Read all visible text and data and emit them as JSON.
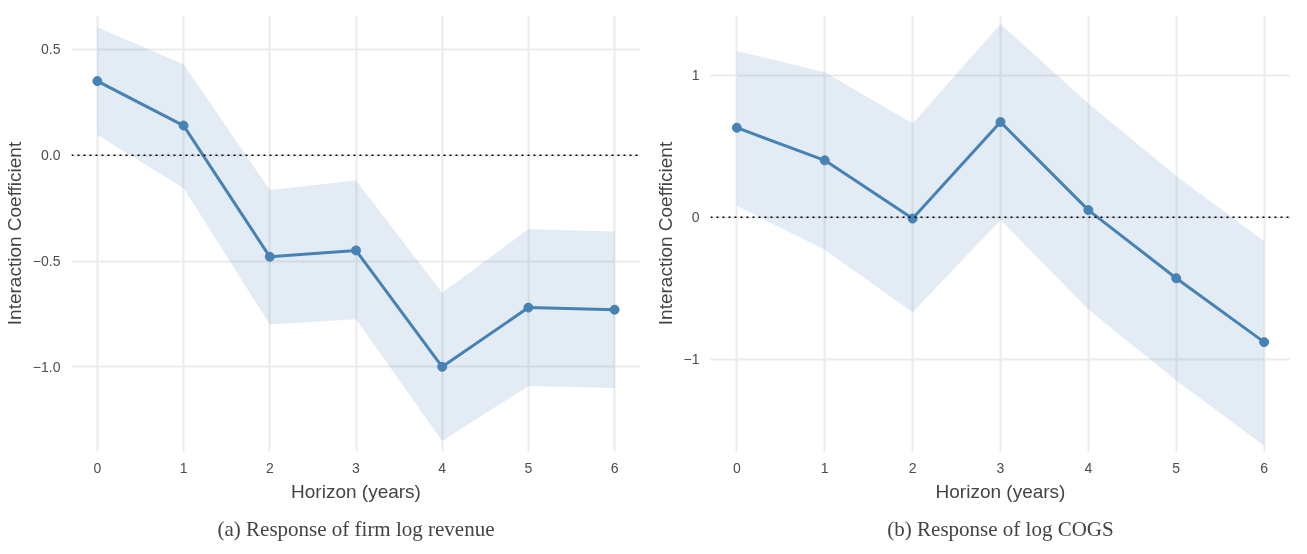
{
  "chart_data": [
    {
      "type": "line",
      "xlabel": "Horizon (years)",
      "ylabel": "Interaction Coefficient",
      "annotations": [
        "(a) Response of firm log revenue"
      ],
      "x": [
        0,
        1,
        2,
        3,
        4,
        5,
        6
      ],
      "series": [
        {
          "color": "#4682b4",
          "values": [
            0.35,
            0.14,
            -0.48,
            -0.45,
            -1.0,
            -0.72,
            -0.73
          ],
          "lower": [
            0.095,
            -0.155,
            -0.8,
            -0.775,
            -1.35,
            -1.09,
            -1.1
          ],
          "upper": [
            0.605,
            0.43,
            -0.165,
            -0.12,
            -0.65,
            -0.35,
            -0.36
          ]
        }
      ],
      "xlim": [
        -0.3,
        6.3
      ],
      "ylim": [
        -1.4,
        0.66
      ],
      "xticks": [
        0,
        1,
        2,
        3,
        4,
        5,
        6
      ],
      "yticks": [
        0.5,
        {
          "value": 0.0,
          "label": "0.0"
        },
        {
          "value": -0.5,
          "label": "−0.5"
        },
        {
          "value": -1.0,
          "label": "−1.0"
        }
      ],
      "ref_lines": [
        {
          "axis": "y",
          "value": 0,
          "color": "#000000",
          "line_style": "dotted"
        }
      ],
      "grid": true,
      "marker": "circle",
      "line_style": "solid"
    },
    {
      "type": "line",
      "xlabel": "Horizon (years)",
      "ylabel": "Interaction Coefficient",
      "annotations": [
        "(b) Response of log COGS"
      ],
      "x": [
        0,
        1,
        2,
        3,
        4,
        5,
        6
      ],
      "series": [
        {
          "color": "#4682b4",
          "values": [
            0.63,
            0.4,
            -0.01,
            0.67,
            0.05,
            -0.43,
            -0.88
          ],
          "lower": [
            0.08,
            -0.23,
            -0.67,
            -0.02,
            -0.65,
            -1.15,
            -1.61
          ],
          "upper": [
            1.17,
            1.02,
            0.66,
            1.36,
            0.8,
            0.29,
            -0.17
          ]
        }
      ],
      "xlim": [
        -0.3,
        6.3
      ],
      "ylim": [
        -1.65,
        1.42
      ],
      "xticks": [
        0,
        1,
        2,
        3,
        4,
        5,
        6
      ],
      "yticks": [
        1,
        0,
        {
          "value": -1,
          "label": "−1"
        }
      ],
      "ref_lines": [
        {
          "axis": "y",
          "value": 0,
          "color": "#000000",
          "line_style": "dotted"
        }
      ],
      "grid": true,
      "marker": "circle",
      "line_style": "solid"
    }
  ]
}
